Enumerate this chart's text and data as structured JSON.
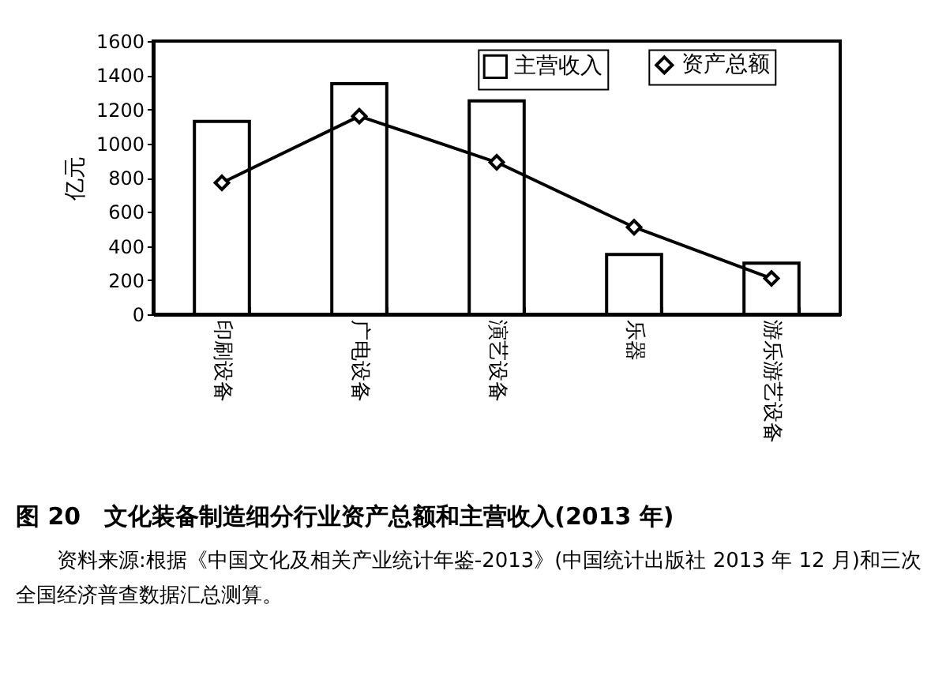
{
  "chart_data": {
    "type": "bar",
    "title": "图 20　文化装备制造细分行业资产总额和主营收入(2013 年)",
    "annotations": [
      "资料来源:根据《中国文化及相关产业统计年鉴-2013》(中国统计出版社 2013 年 12 月)和三次全国经济普查数据汇总测算。"
    ],
    "ylabel": "亿元",
    "categories": [
      "印刷设备",
      "广电设备",
      "演艺设备",
      "乐器",
      "游乐游艺设备"
    ],
    "series": [
      {
        "name": "主营收入",
        "color": "#ffffff",
        "values": [
          1130,
          1350,
          1250,
          350,
          300
        ]
      },
      {
        "name": "资产总额",
        "type": "line",
        "color": "#000000",
        "values": [
          770,
          1160,
          890,
          510,
          210
        ]
      }
    ],
    "ylim": [
      0,
      1600
    ],
    "yticks": [
      0,
      200,
      400,
      600,
      800,
      1000,
      1200,
      1400,
      1600
    ],
    "grid": false,
    "legend": "top right",
    "marker": "diamond"
  }
}
